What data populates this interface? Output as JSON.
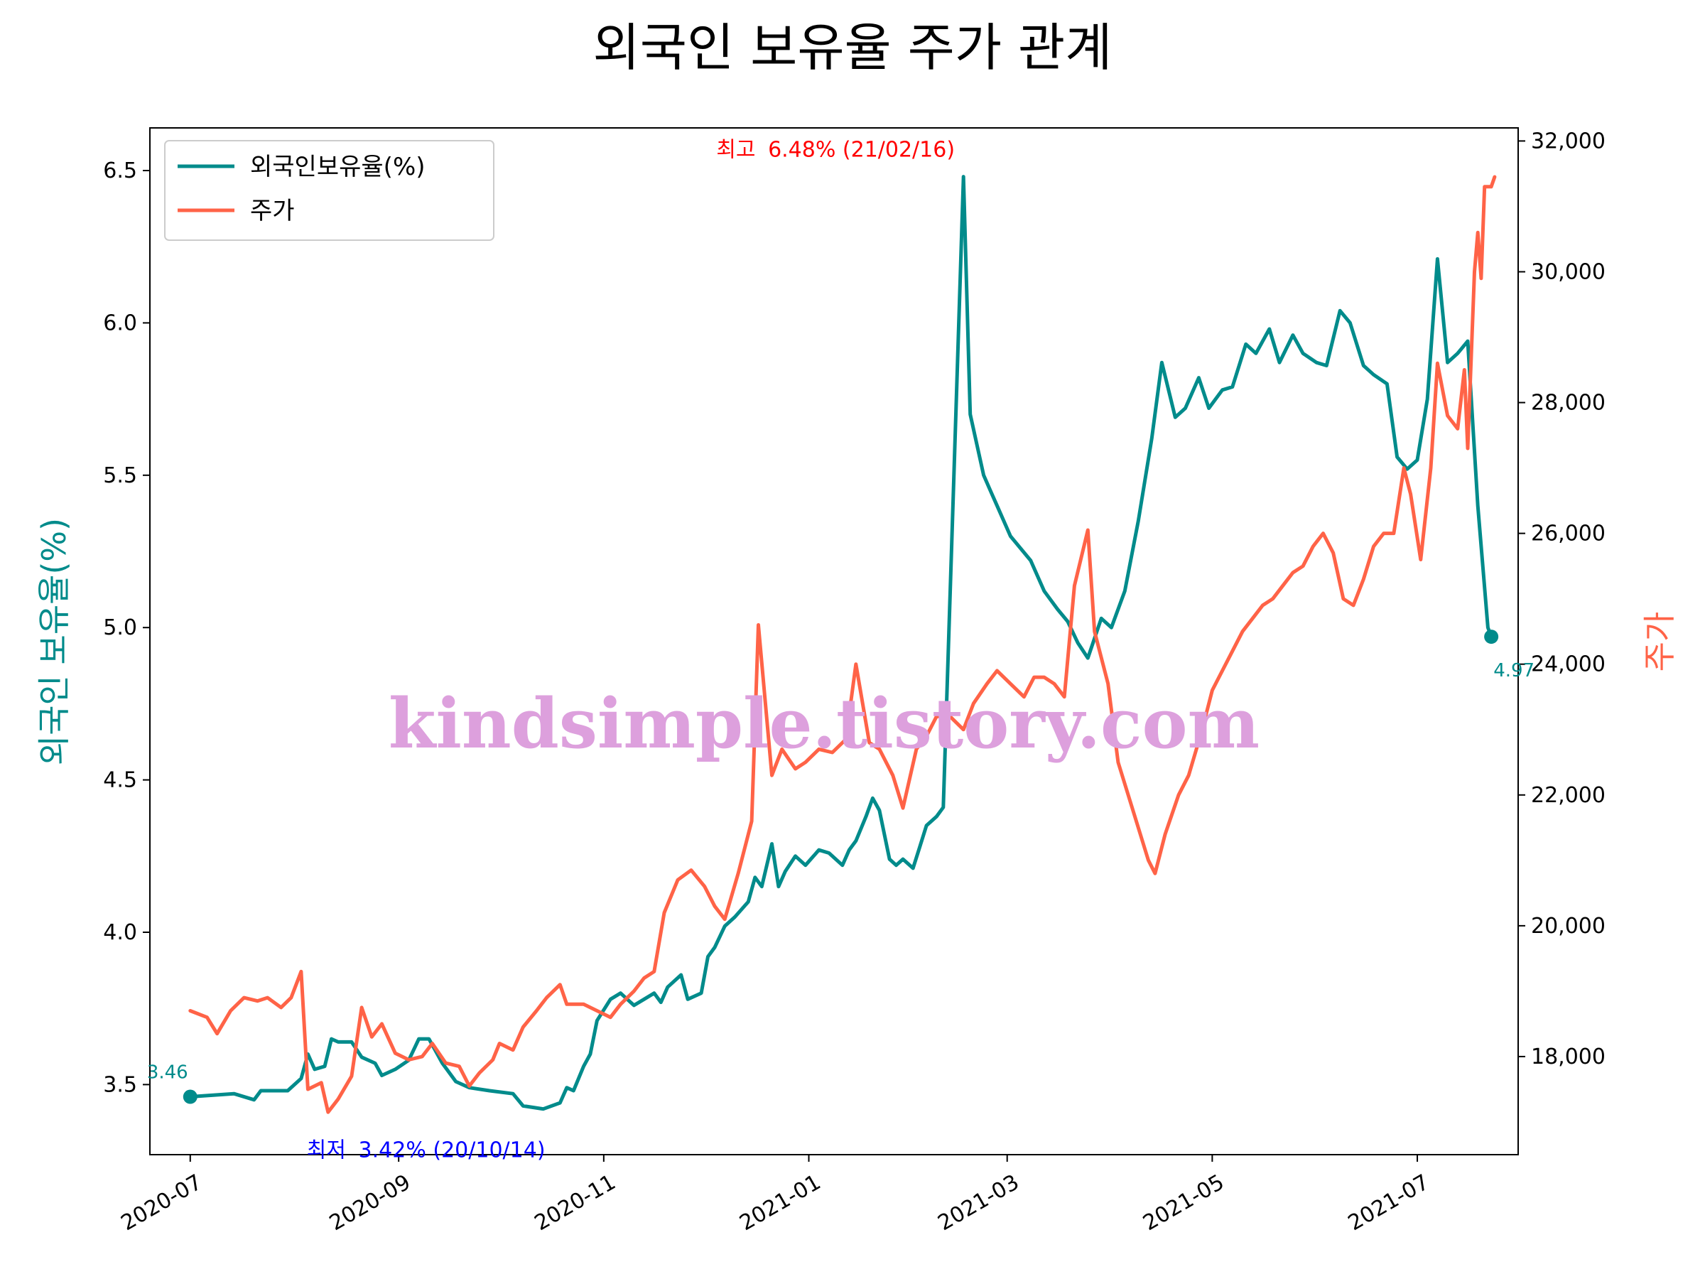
{
  "chart_data": {
    "type": "line",
    "title": "외국인 보유율 주가 관계",
    "y_left_label": "외국인 보유율(%)",
    "y_right_label": "주가",
    "watermark": "kindsimple.tistory.com",
    "x_range": [
      "2020-06-19",
      "2021-07-31"
    ],
    "x_tick_labels": [
      "2020-07",
      "2020-09",
      "2020-11",
      "2021-01",
      "2021-03",
      "2021-05",
      "2021-07"
    ],
    "x_tick_dates": [
      "2020-07-01",
      "2020-09-01",
      "2020-11-01",
      "2021-01-01",
      "2021-03-01",
      "2021-05-01",
      "2021-07-01"
    ],
    "y_left": {
      "range": [
        3.27,
        6.64
      ],
      "ticks": [
        3.5,
        4.0,
        4.5,
        5.0,
        5.5,
        6.0,
        6.5
      ],
      "tick_labels": [
        "3.5",
        "4.0",
        "4.5",
        "5.0",
        "5.5",
        "6.0",
        "6.5"
      ]
    },
    "y_right": {
      "range": [
        16500,
        32200
      ],
      "ticks": [
        18000,
        20000,
        22000,
        24000,
        26000,
        28000,
        30000,
        32000
      ],
      "tick_labels": [
        "18,000",
        "20,000",
        "22,000",
        "24,000",
        "26,000",
        "28,000",
        "30,000",
        "32,000"
      ]
    },
    "grid": false,
    "legend_position": "upper-left",
    "colors": {
      "ownership": "#008b8b",
      "price": "#ff6347",
      "max_note": "#ff0000",
      "min_note": "#0000ff",
      "watermark": "#dda0dd"
    },
    "series": [
      {
        "name": "외국인보유율(%)",
        "axis": "left",
        "points": [
          [
            "2020-07-01",
            3.46
          ],
          [
            "2020-07-14",
            3.47
          ],
          [
            "2020-07-20",
            3.45
          ],
          [
            "2020-07-22",
            3.48
          ],
          [
            "2020-07-30",
            3.48
          ],
          [
            "2020-08-03",
            3.52
          ],
          [
            "2020-08-05",
            3.6
          ],
          [
            "2020-08-07",
            3.55
          ],
          [
            "2020-08-10",
            3.56
          ],
          [
            "2020-08-12",
            3.65
          ],
          [
            "2020-08-14",
            3.64
          ],
          [
            "2020-08-18",
            3.64
          ],
          [
            "2020-08-21",
            3.59
          ],
          [
            "2020-08-25",
            3.57
          ],
          [
            "2020-08-27",
            3.53
          ],
          [
            "2020-08-31",
            3.55
          ],
          [
            "2020-09-04",
            3.58
          ],
          [
            "2020-09-07",
            3.65
          ],
          [
            "2020-09-10",
            3.65
          ],
          [
            "2020-09-14",
            3.57
          ],
          [
            "2020-09-18",
            3.51
          ],
          [
            "2020-09-22",
            3.49
          ],
          [
            "2020-09-28",
            3.48
          ],
          [
            "2020-10-05",
            3.47
          ],
          [
            "2020-10-08",
            3.43
          ],
          [
            "2020-10-14",
            3.42
          ],
          [
            "2020-10-19",
            3.44
          ],
          [
            "2020-10-21",
            3.49
          ],
          [
            "2020-10-23",
            3.48
          ],
          [
            "2020-10-26",
            3.56
          ],
          [
            "2020-10-28",
            3.6
          ],
          [
            "2020-10-30",
            3.71
          ],
          [
            "2020-11-03",
            3.78
          ],
          [
            "2020-11-06",
            3.8
          ],
          [
            "2020-11-10",
            3.76
          ],
          [
            "2020-11-13",
            3.78
          ],
          [
            "2020-11-16",
            3.8
          ],
          [
            "2020-11-18",
            3.77
          ],
          [
            "2020-11-20",
            3.82
          ],
          [
            "2020-11-24",
            3.86
          ],
          [
            "2020-11-26",
            3.78
          ],
          [
            "2020-11-30",
            3.8
          ],
          [
            "2020-12-02",
            3.92
          ],
          [
            "2020-12-04",
            3.95
          ],
          [
            "2020-12-07",
            4.02
          ],
          [
            "2020-12-10",
            4.05
          ],
          [
            "2020-12-14",
            4.1
          ],
          [
            "2020-12-16",
            4.18
          ],
          [
            "2020-12-18",
            4.15
          ],
          [
            "2020-12-21",
            4.29
          ],
          [
            "2020-12-23",
            4.15
          ],
          [
            "2020-12-25",
            4.2
          ],
          [
            "2020-12-28",
            4.25
          ],
          [
            "2020-12-31",
            4.22
          ],
          [
            "2021-01-04",
            4.27
          ],
          [
            "2021-01-07",
            4.26
          ],
          [
            "2021-01-11",
            4.22
          ],
          [
            "2021-01-13",
            4.27
          ],
          [
            "2021-01-15",
            4.3
          ],
          [
            "2021-01-18",
            4.38
          ],
          [
            "2021-01-20",
            4.44
          ],
          [
            "2021-01-22",
            4.4
          ],
          [
            "2021-01-25",
            4.24
          ],
          [
            "2021-01-27",
            4.22
          ],
          [
            "2021-01-29",
            4.24
          ],
          [
            "2021-02-01",
            4.21
          ],
          [
            "2021-02-03",
            4.28
          ],
          [
            "2021-02-05",
            4.35
          ],
          [
            "2021-02-08",
            4.38
          ],
          [
            "2021-02-10",
            4.41
          ],
          [
            "2021-02-16",
            6.48
          ],
          [
            "2021-02-18",
            5.7
          ],
          [
            "2021-02-22",
            5.5
          ],
          [
            "2021-02-24",
            5.45
          ],
          [
            "2021-02-26",
            5.4
          ],
          [
            "2021-03-02",
            5.3
          ],
          [
            "2021-03-08",
            5.22
          ],
          [
            "2021-03-12",
            5.12
          ],
          [
            "2021-03-16",
            5.06
          ],
          [
            "2021-03-19",
            5.02
          ],
          [
            "2021-03-22",
            4.95
          ],
          [
            "2021-03-25",
            4.9
          ],
          [
            "2021-03-29",
            5.03
          ],
          [
            "2021-04-01",
            5.0
          ],
          [
            "2021-04-05",
            5.12
          ],
          [
            "2021-04-09",
            5.35
          ],
          [
            "2021-04-13",
            5.62
          ],
          [
            "2021-04-16",
            5.87
          ],
          [
            "2021-04-20",
            5.69
          ],
          [
            "2021-04-23",
            5.72
          ],
          [
            "2021-04-27",
            5.82
          ],
          [
            "2021-04-30",
            5.72
          ],
          [
            "2021-05-04",
            5.78
          ],
          [
            "2021-05-07",
            5.79
          ],
          [
            "2021-05-11",
            5.93
          ],
          [
            "2021-05-14",
            5.9
          ],
          [
            "2021-05-18",
            5.98
          ],
          [
            "2021-05-21",
            5.87
          ],
          [
            "2021-05-25",
            5.96
          ],
          [
            "2021-05-28",
            5.9
          ],
          [
            "2021-06-01",
            5.87
          ],
          [
            "2021-06-04",
            5.86
          ],
          [
            "2021-06-08",
            6.04
          ],
          [
            "2021-06-11",
            6.0
          ],
          [
            "2021-06-15",
            5.86
          ],
          [
            "2021-06-18",
            5.83
          ],
          [
            "2021-06-22",
            5.8
          ],
          [
            "2021-06-25",
            5.56
          ],
          [
            "2021-06-28",
            5.52
          ],
          [
            "2021-07-01",
            5.55
          ],
          [
            "2021-07-04",
            5.75
          ],
          [
            "2021-07-07",
            6.21
          ],
          [
            "2021-07-10",
            5.87
          ],
          [
            "2021-07-13",
            5.9
          ],
          [
            "2021-07-16",
            5.94
          ],
          [
            "2021-07-19",
            5.4
          ],
          [
            "2021-07-22",
            5.0
          ],
          [
            "2021-07-23",
            4.97
          ]
        ]
      },
      {
        "name": "주가",
        "axis": "right",
        "points": [
          [
            "2020-07-01",
            18700
          ],
          [
            "2020-07-06",
            18600
          ],
          [
            "2020-07-09",
            18350
          ],
          [
            "2020-07-13",
            18700
          ],
          [
            "2020-07-17",
            18900
          ],
          [
            "2020-07-21",
            18850
          ],
          [
            "2020-07-24",
            18900
          ],
          [
            "2020-07-28",
            18750
          ],
          [
            "2020-07-31",
            18900
          ],
          [
            "2020-08-03",
            19300
          ],
          [
            "2020-08-05",
            17500
          ],
          [
            "2020-08-09",
            17600
          ],
          [
            "2020-08-11",
            17150
          ],
          [
            "2020-08-14",
            17350
          ],
          [
            "2020-08-18",
            17700
          ],
          [
            "2020-08-21",
            18750
          ],
          [
            "2020-08-24",
            18300
          ],
          [
            "2020-08-27",
            18500
          ],
          [
            "2020-08-31",
            18050
          ],
          [
            "2020-09-04",
            17950
          ],
          [
            "2020-09-08",
            18000
          ],
          [
            "2020-09-11",
            18200
          ],
          [
            "2020-09-15",
            17900
          ],
          [
            "2020-09-19",
            17850
          ],
          [
            "2020-09-22",
            17550
          ],
          [
            "2020-09-25",
            17750
          ],
          [
            "2020-09-29",
            17950
          ],
          [
            "2020-10-01",
            18200
          ],
          [
            "2020-10-05",
            18100
          ],
          [
            "2020-10-08",
            18450
          ],
          [
            "2020-10-12",
            18700
          ],
          [
            "2020-10-15",
            18900
          ],
          [
            "2020-10-19",
            19100
          ],
          [
            "2020-10-21",
            18800
          ],
          [
            "2020-10-26",
            18800
          ],
          [
            "2020-10-30",
            18700
          ],
          [
            "2020-11-03",
            18600
          ],
          [
            "2020-11-06",
            18800
          ],
          [
            "2020-11-10",
            19000
          ],
          [
            "2020-11-13",
            19200
          ],
          [
            "2020-11-16",
            19300
          ],
          [
            "2020-11-19",
            20200
          ],
          [
            "2020-11-23",
            20700
          ],
          [
            "2020-11-27",
            20850
          ],
          [
            "2020-12-01",
            20600
          ],
          [
            "2020-12-04",
            20300
          ],
          [
            "2020-12-07",
            20100
          ],
          [
            "2020-12-11",
            20800
          ],
          [
            "2020-12-15",
            21600
          ],
          [
            "2020-12-17",
            24600
          ],
          [
            "2020-12-21",
            22300
          ],
          [
            "2020-12-24",
            22700
          ],
          [
            "2020-12-28",
            22400
          ],
          [
            "2020-12-31",
            22500
          ],
          [
            "2021-01-04",
            22700
          ],
          [
            "2021-01-08",
            22650
          ],
          [
            "2021-01-12",
            22850
          ],
          [
            "2021-01-15",
            24000
          ],
          [
            "2021-01-19",
            22800
          ],
          [
            "2021-01-22",
            22700
          ],
          [
            "2021-01-26",
            22300
          ],
          [
            "2021-01-29",
            21800
          ],
          [
            "2021-02-02",
            22700
          ],
          [
            "2021-02-05",
            22900
          ],
          [
            "2021-02-08",
            23200
          ],
          [
            "2021-02-12",
            23200
          ],
          [
            "2021-02-16",
            23000
          ],
          [
            "2021-02-19",
            23400
          ],
          [
            "2021-02-23",
            23700
          ],
          [
            "2021-02-26",
            23900
          ],
          [
            "2021-03-02",
            23700
          ],
          [
            "2021-03-06",
            23500
          ],
          [
            "2021-03-09",
            23800
          ],
          [
            "2021-03-12",
            23800
          ],
          [
            "2021-03-15",
            23700
          ],
          [
            "2021-03-18",
            23500
          ],
          [
            "2021-03-21",
            25200
          ],
          [
            "2021-03-25",
            26050
          ],
          [
            "2021-03-27",
            24500
          ],
          [
            "2021-03-31",
            23700
          ],
          [
            "2021-04-03",
            22500
          ],
          [
            "2021-04-06",
            22000
          ],
          [
            "2021-04-09",
            21500
          ],
          [
            "2021-04-12",
            21000
          ],
          [
            "2021-04-14",
            20800
          ],
          [
            "2021-04-17",
            21400
          ],
          [
            "2021-04-21",
            22000
          ],
          [
            "2021-04-24",
            22300
          ],
          [
            "2021-04-28",
            23000
          ],
          [
            "2021-05-01",
            23600
          ],
          [
            "2021-05-04",
            23900
          ],
          [
            "2021-05-07",
            24200
          ],
          [
            "2021-05-10",
            24500
          ],
          [
            "2021-05-13",
            24700
          ],
          [
            "2021-05-16",
            24900
          ],
          [
            "2021-05-19",
            25000
          ],
          [
            "2021-05-22",
            25200
          ],
          [
            "2021-05-25",
            25400
          ],
          [
            "2021-05-28",
            25500
          ],
          [
            "2021-05-31",
            25800
          ],
          [
            "2021-06-03",
            26000
          ],
          [
            "2021-06-06",
            25700
          ],
          [
            "2021-06-09",
            25000
          ],
          [
            "2021-06-12",
            24900
          ],
          [
            "2021-06-15",
            25300
          ],
          [
            "2021-06-18",
            25800
          ],
          [
            "2021-06-21",
            26000
          ],
          [
            "2021-06-24",
            26000
          ],
          [
            "2021-06-27",
            27000
          ],
          [
            "2021-06-29",
            26600
          ],
          [
            "2021-07-02",
            25600
          ],
          [
            "2021-07-05",
            27000
          ],
          [
            "2021-07-07",
            28600
          ],
          [
            "2021-07-10",
            27800
          ],
          [
            "2021-07-13",
            27600
          ],
          [
            "2021-07-15",
            28500
          ],
          [
            "2021-07-16",
            27300
          ],
          [
            "2021-07-18",
            30000
          ],
          [
            "2021-07-19",
            30600
          ],
          [
            "2021-07-20",
            29900
          ],
          [
            "2021-07-21",
            31300
          ],
          [
            "2021-07-23",
            31300
          ],
          [
            "2021-07-24",
            31450
          ]
        ]
      }
    ],
    "annotations": {
      "max": {
        "label": "최고",
        "text": "6.48% (21/02/16)",
        "x": "2021-02-16",
        "y": 6.48
      },
      "min": {
        "label": "최저",
        "text": "3.42% (20/10/14)",
        "x": "2020-10-14",
        "y": 3.42
      },
      "start": {
        "text": "3.46",
        "x": "2020-07-01",
        "y": 3.46
      },
      "end": {
        "text": "4.97",
        "x": "2021-07-23",
        "y": 4.97
      }
    }
  }
}
